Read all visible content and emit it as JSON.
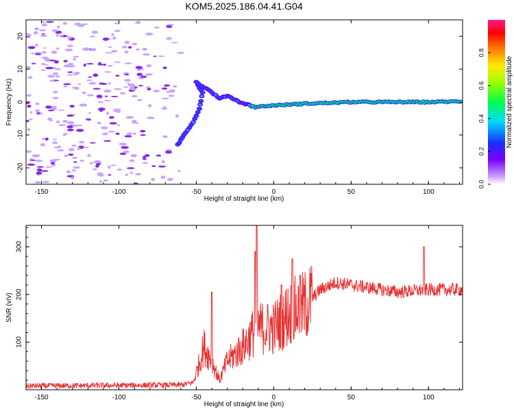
{
  "figure": {
    "title": "KOM5.2025.186.04.41.G04"
  },
  "chart_data": [
    {
      "type": "heatmap",
      "xlabel": "Height of straight line (km)",
      "ylabel": "Frequency (Hz)",
      "xlim": [
        -160,
        122
      ],
      "ylim": [
        -25,
        25
      ],
      "xticks": [
        -150,
        -100,
        -50,
        0,
        50,
        100
      ],
      "yticks": [
        -20,
        -10,
        0,
        10,
        20
      ],
      "colorbar": {
        "label": "Normalized spectral amplitude",
        "range": [
          0,
          1
        ],
        "ticks": [
          "0.0",
          "0.2",
          "0.4",
          "0.6",
          "0.8"
        ]
      },
      "signal_track": [
        {
          "x": -62,
          "freq": -13
        },
        {
          "x": -58,
          "freq": -10
        },
        {
          "x": -52,
          "freq": -6
        },
        {
          "x": -48,
          "freq": -2
        },
        {
          "x": -46,
          "freq": 3
        },
        {
          "x": -50,
          "freq": 6
        },
        {
          "x": -40,
          "freq": 3
        },
        {
          "x": -35,
          "freq": 1
        },
        {
          "x": -30,
          "freq": 2
        },
        {
          "x": -22,
          "freq": 0
        },
        {
          "x": -12,
          "freq": -1.5
        },
        {
          "x": 0,
          "freq": -1
        },
        {
          "x": 20,
          "freq": -0.5
        },
        {
          "x": 50,
          "freq": 0
        },
        {
          "x": 80,
          "freq": 0
        },
        {
          "x": 100,
          "freq": 0
        },
        {
          "x": 122,
          "freq": 0.2
        }
      ],
      "noise_region": [
        -160,
        -60
      ],
      "grid": false
    },
    {
      "type": "line",
      "xlabel": "Height of straight line (km)",
      "ylabel": "SNR (v/v)",
      "xlim": [
        -160,
        122
      ],
      "ylim": [
        0,
        345
      ],
      "xticks": [
        -150,
        -100,
        -50,
        0,
        50,
        100
      ],
      "yticks": [
        100,
        200,
        300
      ],
      "color": "#e83030",
      "envelope": [
        {
          "x": -160,
          "y": 8
        },
        {
          "x": -60,
          "y": 10
        },
        {
          "x": -52,
          "y": 15
        },
        {
          "x": -45,
          "y": 90
        },
        {
          "x": -40,
          "y": 60
        },
        {
          "x": -35,
          "y": 20
        },
        {
          "x": -30,
          "y": 60
        },
        {
          "x": -20,
          "y": 90
        },
        {
          "x": -11,
          "y": 130
        },
        {
          "x": 0,
          "y": 130
        },
        {
          "x": 10,
          "y": 160
        },
        {
          "x": 20,
          "y": 175
        },
        {
          "x": 30,
          "y": 210
        },
        {
          "x": 40,
          "y": 225
        },
        {
          "x": 60,
          "y": 215
        },
        {
          "x": 80,
          "y": 205
        },
        {
          "x": 100,
          "y": 210
        },
        {
          "x": 122,
          "y": 210
        }
      ],
      "spikes": [
        {
          "x": -11,
          "y": 345
        },
        {
          "x": -12,
          "y": 290
        },
        {
          "x": 12,
          "y": 275
        },
        {
          "x": -40,
          "y": 205
        },
        {
          "x": 97,
          "y": 300
        },
        {
          "x": 17,
          "y": 240
        },
        {
          "x": 5,
          "y": 220
        }
      ],
      "grid": false
    }
  ]
}
